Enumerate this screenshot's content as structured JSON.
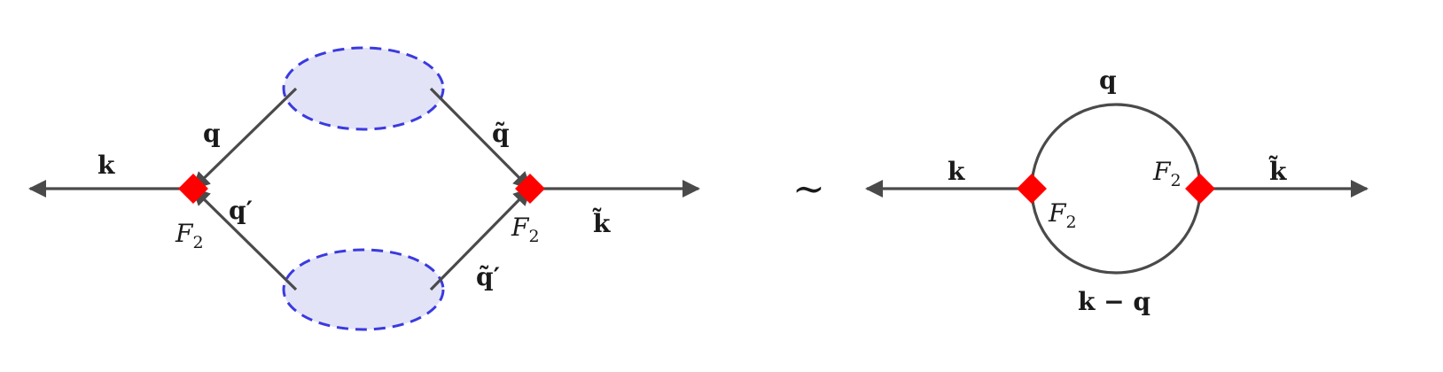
{
  "left_diagram": {
    "labels": {
      "k_in": "k",
      "q": "q",
      "q_prime": "q′",
      "q_tilde": "q̃",
      "q_tilde_prime": "q̃′",
      "k_tilde_out": "k̃",
      "vertex_left": {
        "base": "F",
        "sub": "2"
      },
      "vertex_right": {
        "base": "F",
        "sub": "2"
      }
    }
  },
  "equivalence_symbol": "∼",
  "right_diagram": {
    "labels": {
      "k_in": "k",
      "q_top": "q",
      "k_minus_q": "k − q",
      "k_tilde_out": "k̃",
      "vertex_left": {
        "base": "F",
        "sub": "2"
      },
      "vertex_right": {
        "base": "F",
        "sub": "2"
      }
    }
  },
  "colors": {
    "line": "#4a4a4a",
    "vertex": "#ff0000",
    "blob_fill": "#e3e3f8",
    "blob_stroke": "#3a3ae0"
  }
}
